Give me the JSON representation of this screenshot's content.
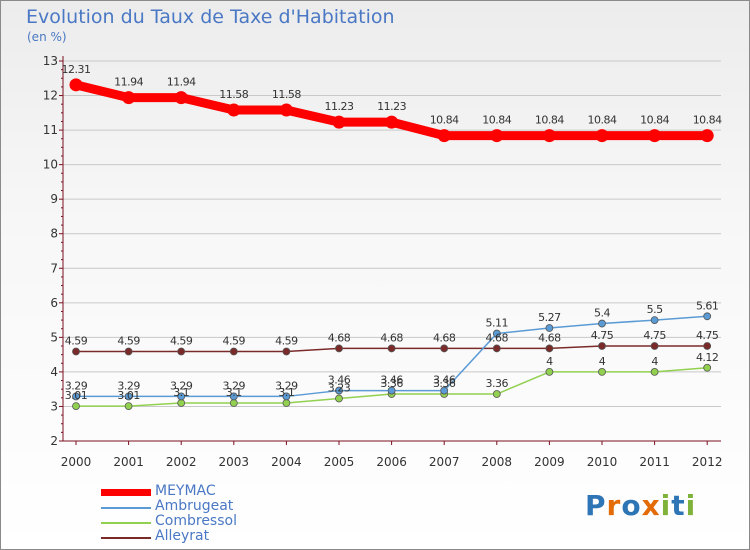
{
  "header": {
    "title": "Evolution du Taux de Taxe d'Habitation",
    "subtitle": "(en %)"
  },
  "logo": {
    "text": "Proxiti"
  },
  "colors": {
    "title": "#4a78c4",
    "axis": "#7a1020",
    "grid": "#c8c8c8"
  },
  "chart_data": {
    "type": "line",
    "title": "Evolution du Taux de Taxe d'Habitation",
    "ylabel": "(en %)",
    "xlabel": "",
    "x": [
      "2000",
      "2001",
      "2002",
      "2003",
      "2004",
      "2005",
      "2006",
      "2007",
      "2008",
      "2009",
      "2010",
      "2011",
      "2012"
    ],
    "ylim": [
      2,
      13
    ],
    "yticks": [
      2,
      3,
      4,
      5,
      6,
      7,
      8,
      9,
      10,
      11,
      12,
      13
    ],
    "grid": "horizontal",
    "legend_position": "bottom-left",
    "series": [
      {
        "name": "MEYMAC",
        "color": "#ff0000",
        "values": [
          12.31,
          11.94,
          11.94,
          11.58,
          11.58,
          11.23,
          11.23,
          10.84,
          10.84,
          10.84,
          10.84,
          10.84,
          10.84
        ],
        "labels": [
          "12.31",
          "11.94",
          "11.94",
          "11.58",
          "11.58",
          "11.23",
          "11.23",
          "10.84",
          "10.84",
          "10.84",
          "10.84",
          "10.84",
          "10.84"
        ]
      },
      {
        "name": "Ambrugeat",
        "color": "#5b9bd5",
        "values": [
          3.29,
          3.29,
          3.29,
          3.29,
          3.29,
          3.46,
          3.46,
          3.46,
          5.11,
          5.27,
          5.4,
          5.5,
          5.61
        ],
        "labels": [
          "3.29",
          "3.29",
          "3.29",
          "3.29",
          "3.29",
          "3.46",
          "3.46",
          "3.46",
          "5.11",
          "5.27",
          "5.4",
          "5.5",
          "5.61"
        ]
      },
      {
        "name": "Combressol",
        "color": "#92d050",
        "values": [
          3.01,
          3.01,
          3.1,
          3.1,
          3.1,
          3.23,
          3.36,
          3.36,
          3.36,
          4,
          4,
          4,
          4.12
        ],
        "labels": [
          "3.01",
          "3.01",
          "3.1",
          "3.1",
          "3.1",
          "3.23",
          "3.36",
          "3.36",
          "3.36",
          "4",
          "4",
          "4",
          "4.12"
        ]
      },
      {
        "name": "Alleyrat",
        "color": "#7b2a2a",
        "values": [
          4.59,
          4.59,
          4.59,
          4.59,
          4.59,
          4.68,
          4.68,
          4.68,
          4.68,
          4.68,
          4.75,
          4.75,
          4.75
        ],
        "labels": [
          "4.59",
          "4.59",
          "4.59",
          "4.59",
          "4.59",
          "4.68",
          "4.68",
          "4.68",
          "4.68",
          "4.68",
          "4.75",
          "4.75",
          "4.75"
        ]
      }
    ]
  }
}
